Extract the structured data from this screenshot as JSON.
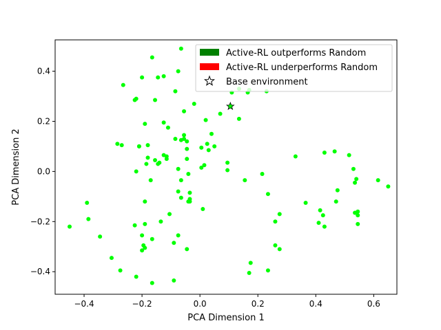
{
  "chart_data": {
    "type": "scatter",
    "xlabel": "PCA Dimension 1",
    "ylabel": "PCA Dimension 2",
    "xlim": [
      -0.5,
      0.68
    ],
    "ylim": [
      -0.49,
      0.525
    ],
    "xticks": [
      "−0.4",
      "−0.2",
      "0.0",
      "0.2",
      "0.4",
      "0.6"
    ],
    "xtick_values": [
      -0.4,
      -0.2,
      0.0,
      0.2,
      0.4,
      0.6
    ],
    "yticks": [
      "−0.4",
      "−0.2",
      "0.0",
      "0.2",
      "0.4"
    ],
    "ytick_values": [
      -0.4,
      -0.2,
      0.0,
      0.2,
      0.4
    ],
    "grid": false,
    "legend_position": "top-right",
    "legend": [
      {
        "label": "Active-RL outperforms Random",
        "color": "#008000",
        "marker": "patch"
      },
      {
        "label": "Active-RL underperforms Random",
        "color": "#ff0000",
        "marker": "patch"
      },
      {
        "label": "Base environment",
        "color": "#ffffff",
        "marker": "star"
      }
    ],
    "point_color": "#00ff00",
    "base_environment": {
      "x": 0.105,
      "y": 0.26,
      "color": "#00ff00"
    },
    "series": [
      {
        "name": "Active-RL outperforms Random",
        "points": [
          [
            -0.165,
            0.455
          ],
          [
            -0.065,
            0.49
          ],
          [
            -0.075,
            0.4
          ],
          [
            -0.2,
            0.375
          ],
          [
            -0.145,
            0.375
          ],
          [
            -0.125,
            0.38
          ],
          [
            -0.265,
            0.345
          ],
          [
            -0.085,
            0.32
          ],
          [
            -0.225,
            0.285
          ],
          [
            -0.22,
            0.29
          ],
          [
            -0.155,
            0.285
          ],
          [
            -0.055,
            0.24
          ],
          [
            -0.02,
            0.27
          ],
          [
            0.02,
            0.205
          ],
          [
            0.07,
            0.23
          ],
          [
            0.135,
            0.21
          ],
          [
            0.11,
            0.315
          ],
          [
            0.135,
            0.33
          ],
          [
            0.165,
            0.315
          ],
          [
            0.17,
            0.325
          ],
          [
            0.23,
            0.32
          ],
          [
            -0.19,
            0.19
          ],
          [
            -0.125,
            0.195
          ],
          [
            -0.11,
            0.175
          ],
          [
            -0.065,
            0.125
          ],
          [
            -0.055,
            0.13
          ],
          [
            -0.055,
            0.145
          ],
          [
            -0.045,
            0.12
          ],
          [
            -0.045,
            0.09
          ],
          [
            -0.085,
            0.13
          ],
          [
            0.04,
            0.15
          ],
          [
            0.025,
            0.11
          ],
          [
            0.005,
            0.095
          ],
          [
            0.03,
            0.085
          ],
          [
            0.05,
            0.1
          ],
          [
            -0.285,
            0.11
          ],
          [
            -0.27,
            0.105
          ],
          [
            -0.21,
            0.1
          ],
          [
            -0.21,
            0.1
          ],
          [
            -0.18,
            0.105
          ],
          [
            -0.18,
            0.055
          ],
          [
            -0.14,
            0.035
          ],
          [
            -0.125,
            0.065
          ],
          [
            -0.115,
            0.06
          ],
          [
            -0.115,
            0.05
          ],
          [
            -0.155,
            0.045
          ],
          [
            -0.145,
            0.03
          ],
          [
            -0.045,
            0.05
          ],
          [
            -0.185,
            0.03
          ],
          [
            -0.075,
            0.01
          ],
          [
            0.005,
            0.015
          ],
          [
            0.015,
            0.025
          ],
          [
            0.095,
            0.035
          ],
          [
            0.095,
            0.005
          ],
          [
            -0.22,
            0.0
          ],
          [
            -0.17,
            -0.035
          ],
          [
            -0.065,
            -0.035
          ],
          [
            -0.04,
            -0.01
          ],
          [
            -0.035,
            -0.085
          ],
          [
            -0.075,
            -0.08
          ],
          [
            -0.065,
            -0.105
          ],
          [
            -0.04,
            -0.12
          ],
          [
            -0.035,
            -0.11
          ],
          [
            0.01,
            -0.15
          ],
          [
            0.155,
            -0.035
          ],
          [
            0.215,
            -0.01
          ],
          [
            0.235,
            -0.09
          ],
          [
            0.26,
            -0.2
          ],
          [
            0.275,
            -0.17
          ],
          [
            0.33,
            0.06
          ],
          [
            0.43,
            0.075
          ],
          [
            0.465,
            0.08
          ],
          [
            0.515,
            0.065
          ],
          [
            0.53,
            0.01
          ],
          [
            0.54,
            -0.03
          ],
          [
            0.535,
            -0.045
          ],
          [
            0.475,
            -0.075
          ],
          [
            0.47,
            -0.12
          ],
          [
            0.365,
            -0.125
          ],
          [
            0.415,
            -0.155
          ],
          [
            0.425,
            -0.175
          ],
          [
            0.41,
            -0.205
          ],
          [
            0.43,
            -0.22
          ],
          [
            0.535,
            -0.165
          ],
          [
            0.545,
            -0.16
          ],
          [
            0.545,
            -0.175
          ],
          [
            0.545,
            -0.21
          ],
          [
            0.615,
            -0.035
          ],
          [
            0.65,
            -0.06
          ],
          [
            -0.39,
            -0.125
          ],
          [
            -0.385,
            -0.19
          ],
          [
            -0.345,
            -0.26
          ],
          [
            -0.45,
            -0.22
          ],
          [
            -0.305,
            -0.345
          ],
          [
            -0.275,
            -0.395
          ],
          [
            -0.225,
            -0.215
          ],
          [
            -0.19,
            -0.12
          ],
          [
            -0.135,
            -0.2
          ],
          [
            -0.105,
            -0.17
          ],
          [
            -0.19,
            -0.21
          ],
          [
            -0.2,
            -0.255
          ],
          [
            -0.195,
            -0.295
          ],
          [
            -0.19,
            -0.305
          ],
          [
            -0.2,
            -0.315
          ],
          [
            -0.165,
            -0.27
          ],
          [
            -0.22,
            -0.42
          ],
          [
            -0.165,
            -0.445
          ],
          [
            -0.09,
            -0.285
          ],
          [
            -0.075,
            -0.255
          ],
          [
            -0.045,
            -0.31
          ],
          [
            -0.09,
            -0.435
          ],
          [
            -0.035,
            -0.12
          ],
          [
            0.26,
            -0.295
          ],
          [
            0.275,
            -0.31
          ],
          [
            0.175,
            -0.365
          ],
          [
            0.17,
            -0.405
          ],
          [
            0.235,
            -0.395
          ]
        ]
      }
    ]
  }
}
